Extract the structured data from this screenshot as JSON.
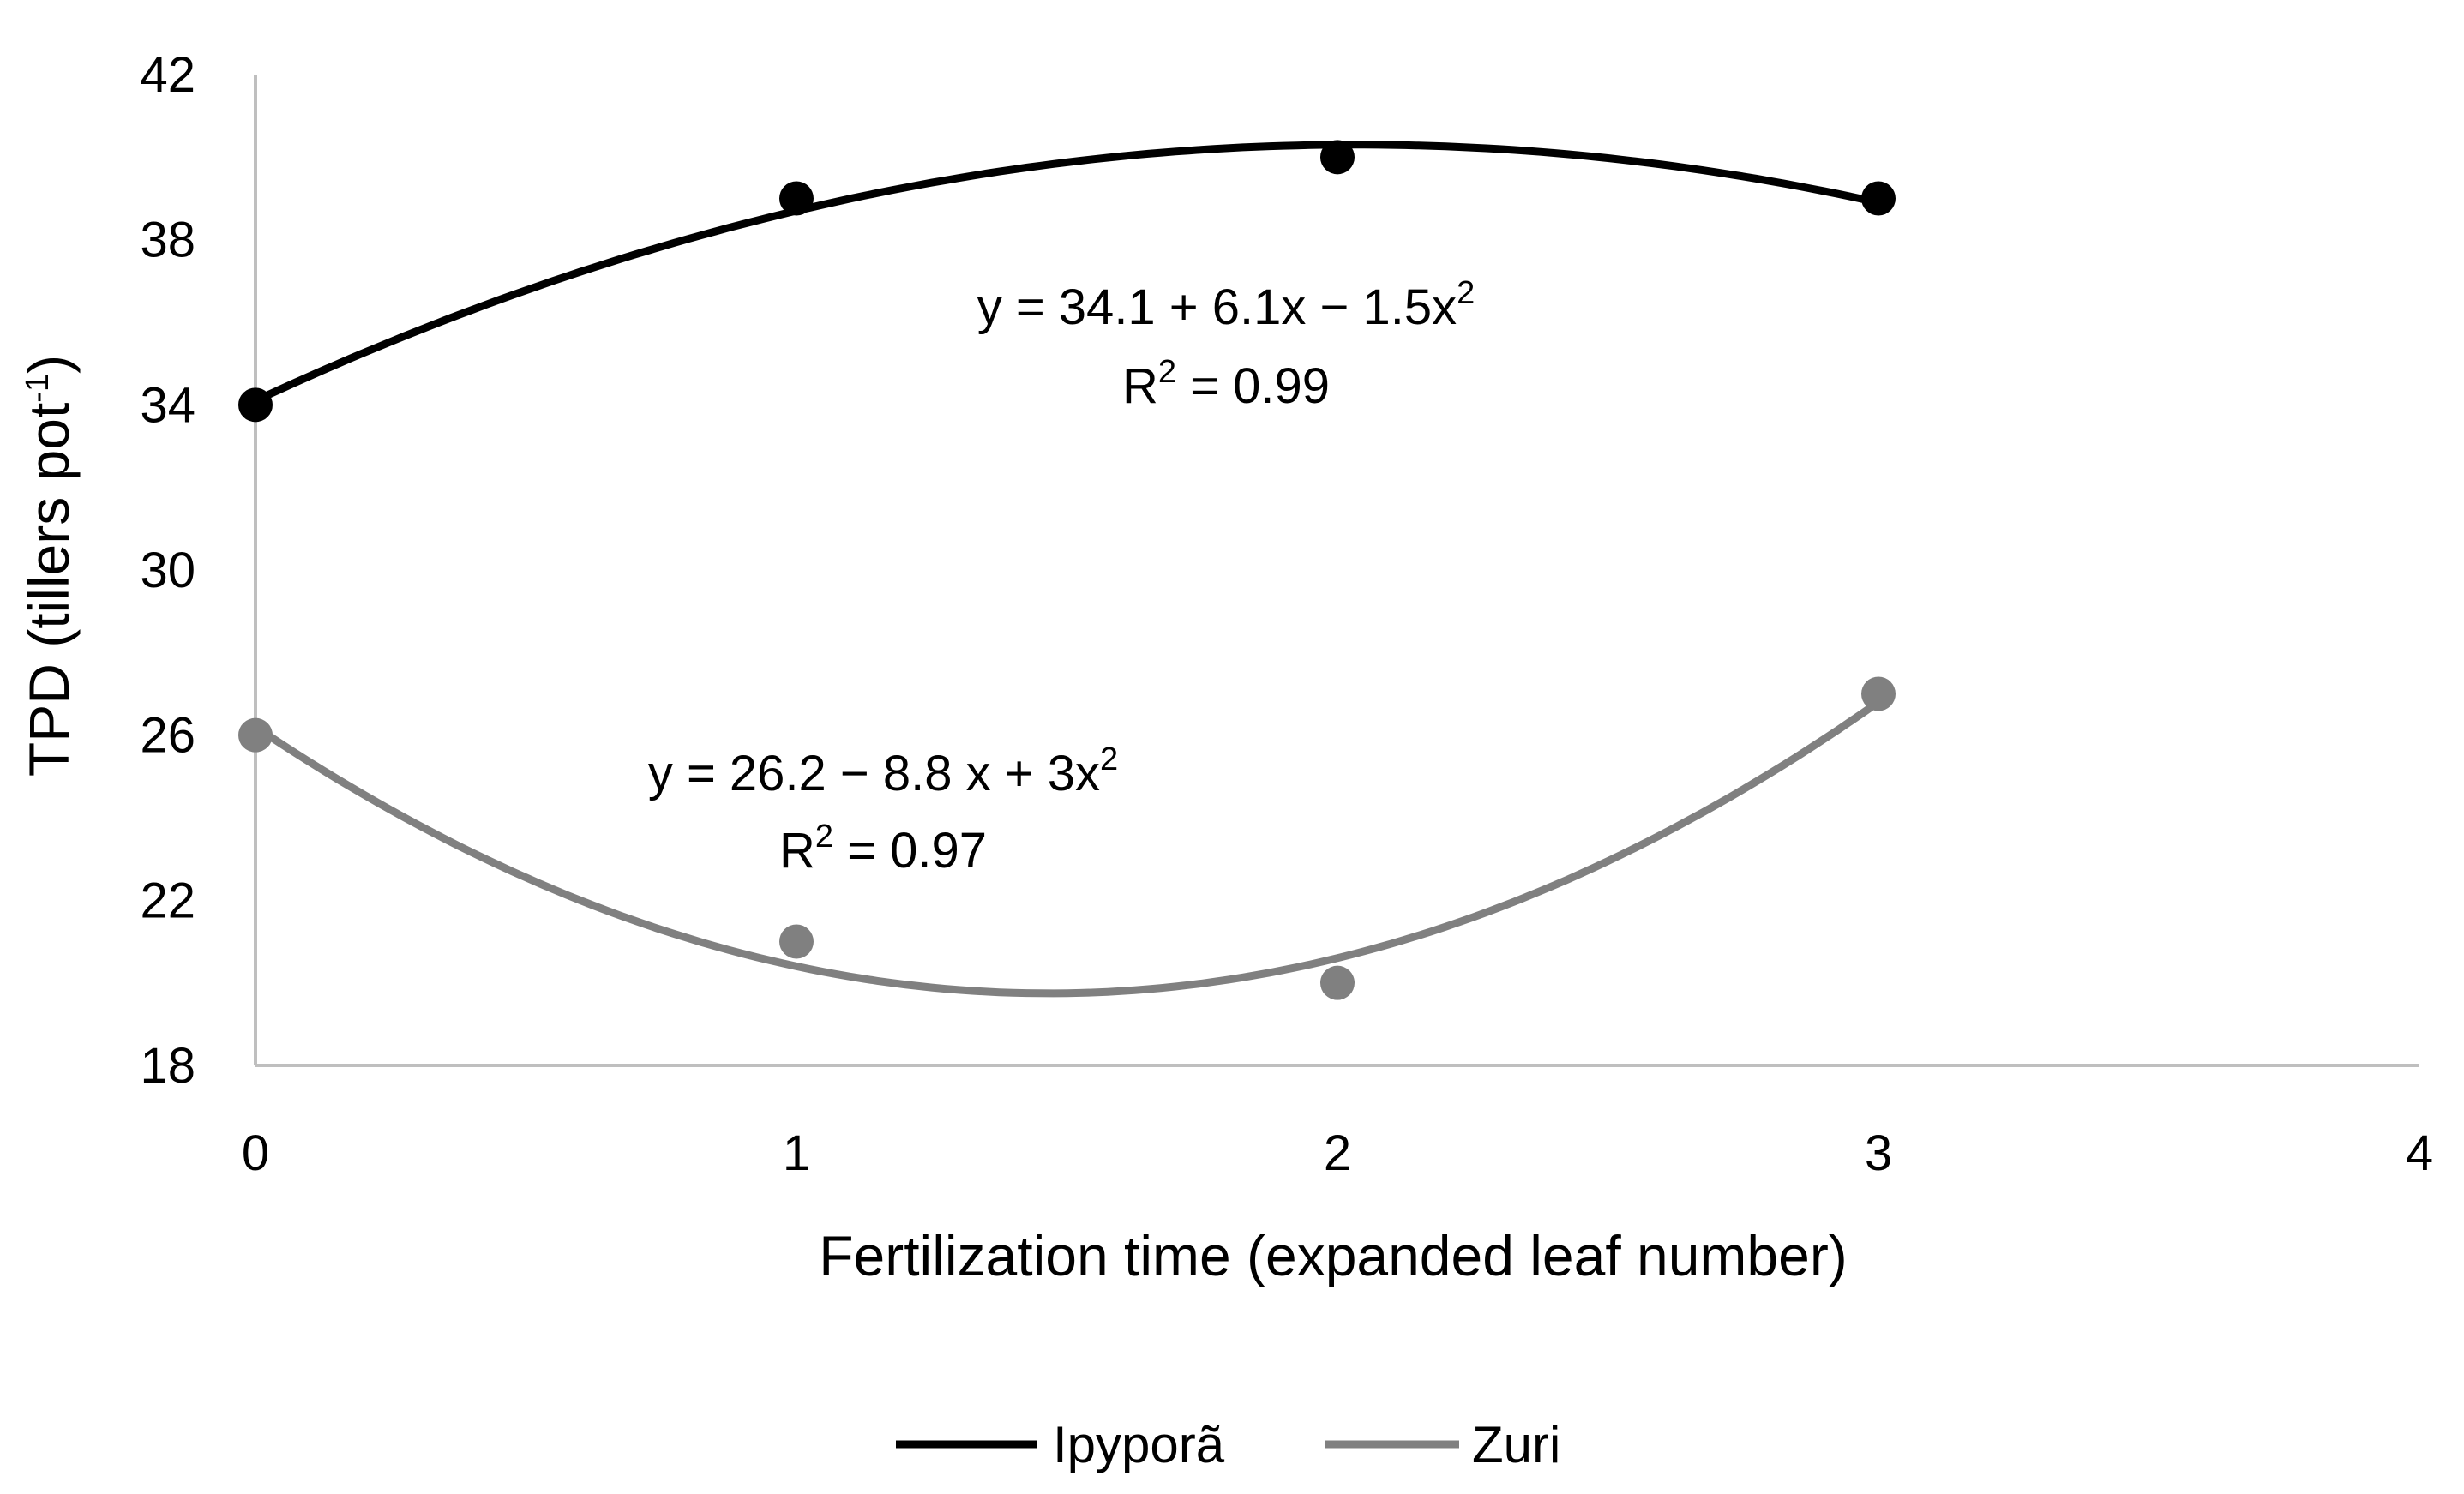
{
  "chart_data": {
    "type": "scatter",
    "xlabel": "Fertilization time (expanded leaf number)",
    "ylabel": {
      "main": "TPD (tillers pot",
      "sup": "-1",
      "end": ")"
    },
    "xlim": [
      0,
      4
    ],
    "ylim": [
      18,
      42
    ],
    "x_ticks": [
      0,
      1,
      2,
      3,
      4
    ],
    "y_ticks": [
      18,
      22,
      26,
      30,
      34,
      38,
      42
    ],
    "grid": false,
    "legend_position": "bottom",
    "series": [
      {
        "name": "Ipyporã",
        "color": "#000000",
        "x": [
          0,
          1,
          2,
          3
        ],
        "y": [
          34,
          39,
          40,
          39
        ],
        "fit": {
          "coef": [
            34.1,
            6.1,
            -1.5
          ],
          "x_range": [
            0,
            3
          ]
        },
        "equation": {
          "line1_main": "y = 34.1 + 6.1x − 1.5x",
          "line1_sup": "2",
          "line2_pre": "R",
          "line2_sup": "2",
          "line2_post": " = 0.99"
        }
      },
      {
        "name": "Zuri",
        "color": "#808080",
        "x": [
          0,
          1,
          2,
          3
        ],
        "y": [
          26,
          21,
          20,
          27
        ],
        "fit": {
          "coef": [
            26.2,
            -8.8,
            3.0
          ],
          "x_range": [
            0,
            3
          ]
        },
        "equation": {
          "line1_main": "y = 26.2 − 8.8 x + 3x",
          "line1_sup": "2",
          "line2_pre": "R",
          "line2_sup": "2",
          "line2_post": " = 0.97"
        }
      }
    ]
  }
}
